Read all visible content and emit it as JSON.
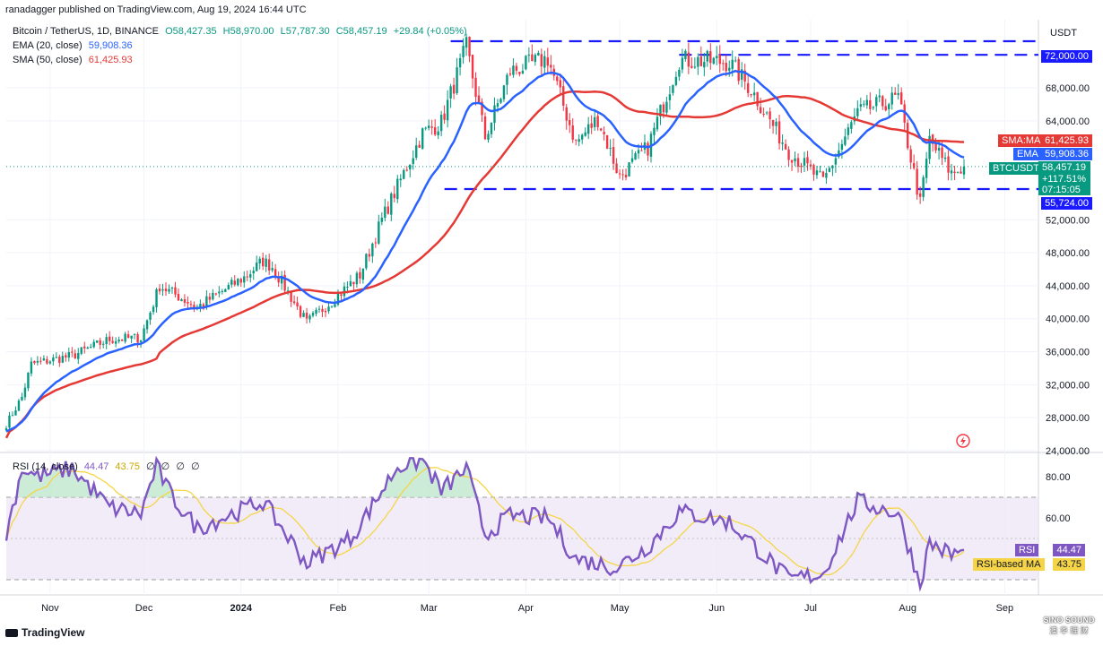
{
  "header": {
    "publisher": "ranadagger published on TradingView.com, Aug 19, 2024 16:44 UTC",
    "currency": "USDT"
  },
  "legend": {
    "symbol": "Bitcoin / TetherUS, 1D, BINANCE",
    "ohlc_o": "O58,427.35",
    "ohlc_h": "H58,970.00",
    "ohlc_l": "L57,787.30",
    "ohlc_c": "C58,457.19",
    "change": "+29.84 (+0.05%)",
    "ema_label": "EMA (20, close)",
    "ema_value": "59,908.36",
    "sma_label": "SMA (50, close)",
    "sma_value": "61,425.93"
  },
  "price_tags": {
    "level_high": "72,000.00",
    "level_low": "55,724.00",
    "sma_label": "SMA:MA",
    "sma_value": "61,425.93",
    "ema_label": "EMA",
    "ema_value": "59,908.36",
    "symbol_label": "BTCUSDT",
    "last_price": "58,457.19",
    "change_pct": "+117.51%",
    "countdown": "07:15:05"
  },
  "rsi_panel": {
    "title": "RSI (14, close)",
    "rsi_value": "44.47",
    "ma_value": "43.75",
    "empty_markers": [
      "∅",
      "∅",
      "∅",
      "∅"
    ],
    "tag_rsi": "RSI",
    "tag_rsi_value": "44.47",
    "tag_ma": "RSI-based MA",
    "tag_ma_value": "43.75"
  },
  "footer": {
    "brand": "TradingView",
    "watermark_lines": [
      "SINO SOUND",
      "澳 华 理 财"
    ]
  },
  "colors": {
    "up": "#089981",
    "down": "#f23645",
    "ema": "#2962ff",
    "sma": "#e53935",
    "rsi": "#7e57c2",
    "rsi_ma": "#f5d547",
    "level_line": "#1a1aff",
    "band_fill": "#ede7f6"
  },
  "chart_data": [
    {
      "type": "candlestick",
      "title": "Bitcoin / TetherUS, 1D, BINANCE",
      "x_ticks": [
        "Nov",
        "Dec",
        "2024",
        "Feb",
        "Mar",
        "Apr",
        "May",
        "Jun",
        "Jul",
        "Aug",
        "Sep"
      ],
      "y_ticks": [
        "24,000.00",
        "28,000.00",
        "32,000.00",
        "36,000.00",
        "40,000.00",
        "44,000.00",
        "48,000.00",
        "52,000.00",
        "64,000.00",
        "68,000.00"
      ],
      "y_tick_values": [
        24000,
        28000,
        32000,
        36000,
        40000,
        44000,
        48000,
        52000,
        64000,
        68000
      ],
      "ylim": [
        23800,
        74500
      ],
      "grid": true,
      "horizontal_levels": [
        72000,
        55724
      ],
      "price_anchors": [
        {
          "date": "2023-10-18",
          "close": 27200
        },
        {
          "date": "2023-10-23",
          "close": 30500
        },
        {
          "date": "2023-10-26",
          "close": 34500
        },
        {
          "date": "2023-11-08",
          "close": 35500
        },
        {
          "date": "2023-11-20",
          "close": 37500
        },
        {
          "date": "2023-11-30",
          "close": 37700
        },
        {
          "date": "2023-12-06",
          "close": 44000
        },
        {
          "date": "2023-12-18",
          "close": 41400
        },
        {
          "date": "2024-01-02",
          "close": 45000
        },
        {
          "date": "2024-01-08",
          "close": 47000
        },
        {
          "date": "2024-01-11",
          "close": 46300
        },
        {
          "date": "2024-01-22",
          "close": 39500
        },
        {
          "date": "2024-01-31",
          "close": 42500
        },
        {
          "date": "2024-02-08",
          "close": 45300
        },
        {
          "date": "2024-02-15",
          "close": 52000
        },
        {
          "date": "2024-02-28",
          "close": 62500
        },
        {
          "date": "2024-03-05",
          "close": 63800
        },
        {
          "date": "2024-03-13",
          "close": 73000
        },
        {
          "date": "2024-03-19",
          "close": 62000
        },
        {
          "date": "2024-03-27",
          "close": 70000
        },
        {
          "date": "2024-04-08",
          "close": 71600
        },
        {
          "date": "2024-04-17",
          "close": 61300
        },
        {
          "date": "2024-04-24",
          "close": 64300
        },
        {
          "date": "2024-05-01",
          "close": 57200
        },
        {
          "date": "2024-05-10",
          "close": 60800
        },
        {
          "date": "2024-05-20",
          "close": 71400
        },
        {
          "date": "2024-06-05",
          "close": 71100
        },
        {
          "date": "2024-06-12",
          "close": 67800
        },
        {
          "date": "2024-06-24",
          "close": 60300
        },
        {
          "date": "2024-07-05",
          "close": 56600
        },
        {
          "date": "2024-07-16",
          "close": 65000
        },
        {
          "date": "2024-07-29",
          "close": 66800
        },
        {
          "date": "2024-08-05",
          "close": 54000
        },
        {
          "date": "2024-08-08",
          "close": 61700
        },
        {
          "date": "2024-08-15",
          "close": 57600
        },
        {
          "date": "2024-08-19",
          "close": 58457
        }
      ],
      "series": [
        {
          "name": "EMA (20, close)",
          "last": 59908.36
        },
        {
          "name": "SMA (50, close)",
          "last": 61425.93
        }
      ],
      "last_price": 58457.19
    },
    {
      "type": "line",
      "title": "RSI (14, close)",
      "y_ticks": [
        "60.00",
        "80.00"
      ],
      "y_tick_values": [
        60,
        80
      ],
      "ylim": [
        24,
        90
      ],
      "bands": {
        "upper": 70,
        "middle": 50,
        "lower": 30
      },
      "rsi_anchors": [
        {
          "date": "2023-10-18",
          "value": 52
        },
        {
          "date": "2023-10-23",
          "value": 84
        },
        {
          "date": "2023-10-28",
          "value": 80
        },
        {
          "date": "2023-11-08",
          "value": 84
        },
        {
          "date": "2023-11-20",
          "value": 65
        },
        {
          "date": "2023-11-30",
          "value": 62
        },
        {
          "date": "2023-12-05",
          "value": 85
        },
        {
          "date": "2023-12-10",
          "value": 70
        },
        {
          "date": "2023-12-18",
          "value": 55
        },
        {
          "date": "2024-01-08",
          "value": 68
        },
        {
          "date": "2024-01-22",
          "value": 38
        },
        {
          "date": "2024-02-05",
          "value": 50
        },
        {
          "date": "2024-02-12",
          "value": 66
        },
        {
          "date": "2024-02-20",
          "value": 85
        },
        {
          "date": "2024-02-28",
          "value": 88
        },
        {
          "date": "2024-03-05",
          "value": 73
        },
        {
          "date": "2024-03-13",
          "value": 84
        },
        {
          "date": "2024-03-19",
          "value": 52
        },
        {
          "date": "2024-03-27",
          "value": 61
        },
        {
          "date": "2024-04-08",
          "value": 60
        },
        {
          "date": "2024-04-17",
          "value": 40
        },
        {
          "date": "2024-04-30",
          "value": 36
        },
        {
          "date": "2024-05-10",
          "value": 46
        },
        {
          "date": "2024-05-20",
          "value": 63
        },
        {
          "date": "2024-06-05",
          "value": 58
        },
        {
          "date": "2024-06-12",
          "value": 48
        },
        {
          "date": "2024-06-24",
          "value": 30
        },
        {
          "date": "2024-07-05",
          "value": 33
        },
        {
          "date": "2024-07-16",
          "value": 68
        },
        {
          "date": "2024-07-29",
          "value": 62
        },
        {
          "date": "2024-08-05",
          "value": 28
        },
        {
          "date": "2024-08-08",
          "value": 48
        },
        {
          "date": "2024-08-15",
          "value": 42
        },
        {
          "date": "2024-08-19",
          "value": 44.47
        }
      ],
      "series": [
        {
          "name": "RSI",
          "last": 44.47
        },
        {
          "name": "RSI-based MA",
          "last": 43.75
        }
      ]
    }
  ]
}
